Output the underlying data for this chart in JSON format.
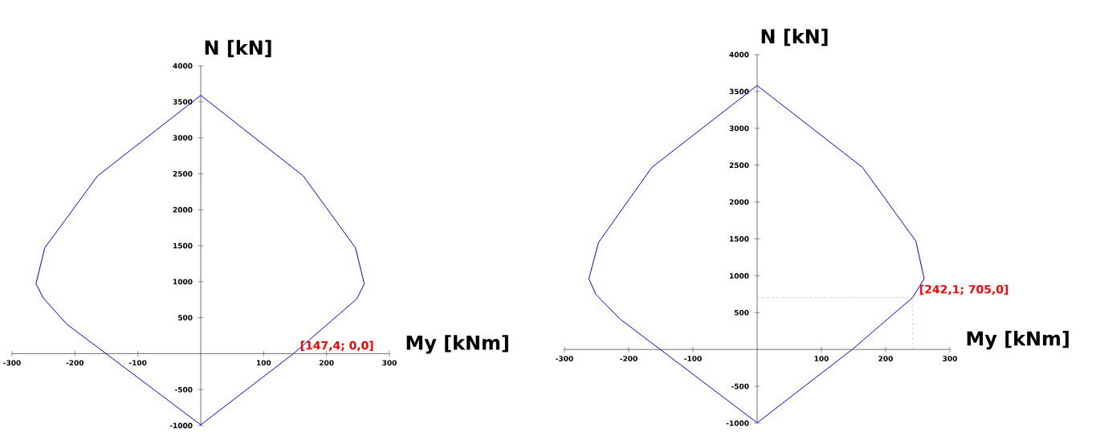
{
  "chart_data": [
    {
      "type": "line",
      "xlabel": "My [kNm]",
      "ylabel": "N [kN]",
      "series": [
        {
          "color": "#0000ff",
          "x": [
            0,
            163,
            246,
            260,
            248,
            147.4,
            0
          ],
          "values": [
            3590,
            2470,
            1470,
            970,
            760,
            0,
            -990
          ]
        },
        {
          "color": "#0000ff",
          "x": [
            0,
            -164,
            -248,
            -262,
            -250,
            -213,
            0
          ],
          "values": [
            3590,
            2470,
            1470,
            970,
            770,
            410,
            -990
          ]
        }
      ],
      "xlim": [
        -300,
        300
      ],
      "ylim": [
        -1000,
        4000
      ],
      "xticks": [
        -300,
        -200,
        -100,
        100,
        200,
        300
      ],
      "yticks": [
        -1000,
        -500,
        500,
        1000,
        1500,
        2000,
        2500,
        3000,
        3500,
        4000
      ],
      "annotations": [
        {
          "text": "[147,4; 0,0]",
          "x": 147.4,
          "y": 0
        }
      ]
    },
    {
      "type": "line",
      "xlabel": "My [kNm]",
      "ylabel": "N [kN]",
      "series": [
        {
          "color": "#0000ff",
          "x": [
            0,
            164,
            247,
            260,
            242.1,
            148,
            0
          ],
          "values": [
            3580,
            2470,
            1470,
            960,
            705,
            0,
            -995
          ]
        },
        {
          "color": "#0000ff",
          "x": [
            0,
            -164,
            -247,
            -262,
            -251,
            -213,
            0
          ],
          "values": [
            3580,
            2470,
            1450,
            960,
            745,
            410,
            -995
          ]
        }
      ],
      "xlim": [
        -300,
        300
      ],
      "ylim": [
        -1000,
        4000
      ],
      "xticks": [
        -300,
        -200,
        -100,
        100,
        200,
        300
      ],
      "yticks": [
        -1000,
        -500,
        500,
        1000,
        1500,
        2000,
        2500,
        3000,
        3500,
        4000
      ],
      "annotations": [
        {
          "text": "[242,1; 705,0]",
          "x": 242.1,
          "y": 705
        }
      ],
      "ref_lines": [
        {
          "axis": "x",
          "value": 242.1,
          "color": "#ff9999",
          "line_style": "dashed"
        },
        {
          "axis": "y",
          "value": 705,
          "color": "#ff9999",
          "line_style": "dashed"
        }
      ]
    }
  ]
}
